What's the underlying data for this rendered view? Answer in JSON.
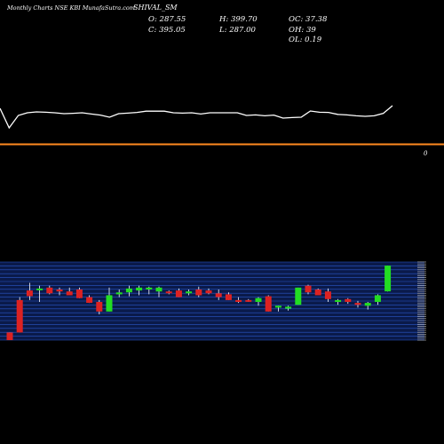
{
  "header": {
    "site": "Monthly Charts NSE KBI MunafaSutra.com",
    "symbol": "SHIVAL_SM",
    "open": "O: 287.55",
    "high": "H: 399.70",
    "oc": "OC: 37.38",
    "close": "C: 395.05",
    "low": "L: 287.00",
    "oh": "OH: 39",
    "ol": "OL: 0.19"
  },
  "indicator_marker": "0",
  "colors": {
    "background": "#000000",
    "up": "#22dd22",
    "down": "#dd2222",
    "line": "#ffffff",
    "level": "#ff8a1f",
    "band": "#0a1a4a",
    "band_line": "#2a57c8"
  },
  "chart_data": [
    {
      "type": "line",
      "title": "",
      "values": [
        2.5,
        1.4,
        2.1,
        2.25,
        2.3,
        2.28,
        2.25,
        2.2,
        2.22,
        2.25,
        2.18,
        2.12,
        2.0,
        2.2,
        2.23,
        2.27,
        2.34,
        2.34,
        2.34,
        2.25,
        2.23,
        2.25,
        2.18,
        2.25,
        2.25,
        2.25,
        2.25,
        2.1,
        2.13,
        2.08,
        2.12,
        1.95,
        1.98,
        2.0,
        2.35,
        2.28,
        2.27,
        2.16,
        2.13,
        2.08,
        2.05,
        2.08,
        2.22,
        2.65
      ],
      "level": 0,
      "level_label": "0"
    },
    {
      "type": "candlestick",
      "title": "",
      "candles": [
        {
          "o": 8,
          "h": 8,
          "l": 0,
          "c": 0
        },
        {
          "o": 42,
          "h": 45,
          "l": 8,
          "c": 8
        },
        {
          "o": 52,
          "h": 60,
          "l": 42,
          "c": 46
        },
        {
          "o": 54,
          "h": 57,
          "l": 40,
          "c": 54
        },
        {
          "o": 55,
          "h": 57,
          "l": 48,
          "c": 49
        },
        {
          "o": 53,
          "h": 55,
          "l": 47,
          "c": 51
        },
        {
          "o": 51,
          "h": 55,
          "l": 47,
          "c": 47
        },
        {
          "o": 53,
          "h": 55,
          "l": 44,
          "c": 44
        },
        {
          "o": 45,
          "h": 47,
          "l": 39,
          "c": 39
        },
        {
          "o": 40,
          "h": 42,
          "l": 27,
          "c": 30
        },
        {
          "o": 30,
          "h": 55,
          "l": 30,
          "c": 47
        },
        {
          "o": 48,
          "h": 53,
          "l": 45,
          "c": 50
        },
        {
          "o": 50,
          "h": 57,
          "l": 46,
          "c": 54
        },
        {
          "o": 52,
          "h": 57,
          "l": 47,
          "c": 55
        },
        {
          "o": 53,
          "h": 56,
          "l": 48,
          "c": 55
        },
        {
          "o": 51,
          "h": 56,
          "l": 45,
          "c": 55
        },
        {
          "o": 51,
          "h": 52,
          "l": 48,
          "c": 49
        },
        {
          "o": 52,
          "h": 54,
          "l": 45,
          "c": 45
        },
        {
          "o": 49,
          "h": 53,
          "l": 47,
          "c": 51
        },
        {
          "o": 53,
          "h": 56,
          "l": 45,
          "c": 47
        },
        {
          "o": 52,
          "h": 54,
          "l": 48,
          "c": 49
        },
        {
          "o": 49,
          "h": 53,
          "l": 42,
          "c": 45
        },
        {
          "o": 48,
          "h": 50,
          "l": 42,
          "c": 42
        },
        {
          "o": 42,
          "h": 45,
          "l": 39,
          "c": 40
        },
        {
          "o": 42,
          "h": 43,
          "l": 40,
          "c": 41
        },
        {
          "o": 40,
          "h": 45,
          "l": 36,
          "c": 44
        },
        {
          "o": 46,
          "h": 47,
          "l": 30,
          "c": 30
        },
        {
          "o": 34,
          "h": 36,
          "l": 30,
          "c": 36
        },
        {
          "o": 33,
          "h": 36,
          "l": 31,
          "c": 35
        },
        {
          "o": 37,
          "h": 55,
          "l": 37,
          "c": 55
        },
        {
          "o": 57,
          "h": 58,
          "l": 48,
          "c": 50
        },
        {
          "o": 53,
          "h": 54,
          "l": 47,
          "c": 47
        },
        {
          "o": 51,
          "h": 54,
          "l": 40,
          "c": 43
        },
        {
          "o": 40,
          "h": 43,
          "l": 37,
          "c": 42
        },
        {
          "o": 43,
          "h": 44,
          "l": 38,
          "c": 40
        },
        {
          "o": 39,
          "h": 41,
          "l": 34,
          "c": 37
        },
        {
          "o": 36,
          "h": 40,
          "l": 32,
          "c": 39
        },
        {
          "o": 40,
          "h": 48,
          "l": 37,
          "c": 47
        },
        {
          "o": 51,
          "h": 78,
          "l": 51,
          "c": 78
        }
      ]
    }
  ]
}
